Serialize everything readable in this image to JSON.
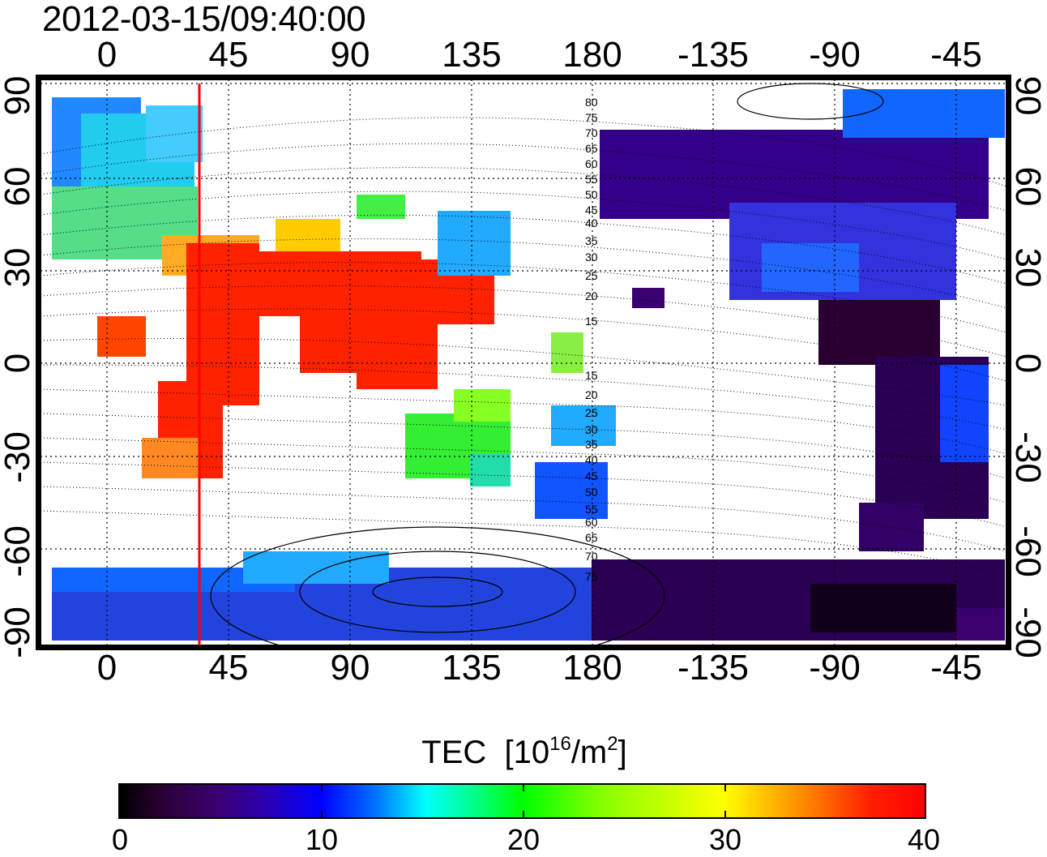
{
  "title": "2012-03-15/09:40:00",
  "lon_ticks": [
    "0",
    "45",
    "90",
    "135",
    "180",
    "-135",
    "-90",
    "-45"
  ],
  "lat_ticks": [
    "90",
    "60",
    "30",
    "0",
    "-30",
    "-60",
    "-90"
  ],
  "dip_labels": [
    "80",
    "75",
    "70",
    "65",
    "60",
    "55",
    "50",
    "45",
    "40",
    "35",
    "30",
    "25",
    "20",
    "15",
    "15",
    "20",
    "25",
    "30",
    "35",
    "40",
    "45",
    "50",
    "55",
    "60",
    "65",
    "70",
    "75"
  ],
  "colorbar": {
    "title": "TEC",
    "units_prefix": "[10",
    "units_exp1": "16",
    "units_mid": "/m",
    "units_exp2": "2",
    "units_suffix": "]",
    "ticks": [
      "0",
      "10",
      "20",
      "30",
      "40"
    ],
    "min": 0,
    "max": 40
  },
  "colors": {
    "terminator_line": "#ff0000",
    "grid": "#000000"
  }
}
